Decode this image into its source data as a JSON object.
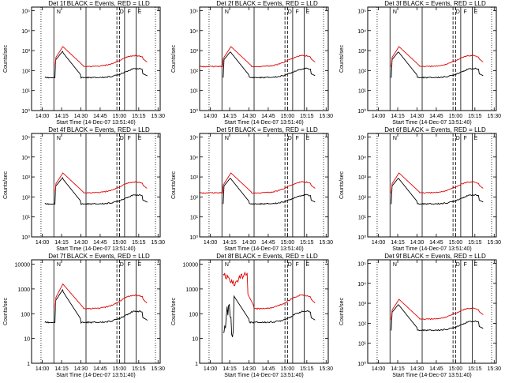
{
  "chart_data": [
    {
      "type": "line",
      "title": "Det 1f BLACK = Events, RED = LLD",
      "xlabel": "Start Time (14-Dec-07 13:51:40)",
      "ylabel": "Counts/sec",
      "ylog": true,
      "ytick_labels": [
        "10⁰",
        "10¹",
        "10²",
        "10³",
        "10⁴",
        "10⁵"
      ],
      "yticks": [
        1,
        10,
        100,
        1000,
        10000,
        100000
      ],
      "ylim": [
        1,
        150000
      ],
      "xticks": [
        "14:00",
        "14:15",
        "14:30",
        "14:45",
        "15:00",
        "15:15",
        "15:30"
      ],
      "xlim": [
        "13:51:40",
        "15:31:40"
      ],
      "markers": {
        "labels": [
          "N",
          "D",
          "F",
          "E"
        ]
      },
      "profile": "a",
      "series": [
        {
          "color": "#000000",
          "start": "14:02"
        },
        {
          "color": "#e00000",
          "start": "14:10"
        }
      ]
    },
    {
      "type": "line",
      "title": "Det 2f BLACK = Events, RED = LLD",
      "xlabel": "Start Time (14-Dec-07 13:51:40)",
      "ylabel": "Counts/sec",
      "ylog": true,
      "ytick_labels": [
        "10⁰",
        "10¹",
        "10²",
        "10³",
        "10⁴",
        "10⁵"
      ],
      "yticks": [
        1,
        10,
        100,
        1000,
        10000,
        100000
      ],
      "ylim": [
        1,
        150000
      ],
      "xticks": [
        "14:00",
        "14:15",
        "14:30",
        "14:45",
        "15:00",
        "15:15",
        "15:30"
      ],
      "xlim": [
        "13:51:40",
        "15:31:40"
      ],
      "markers": {
        "labels": [
          "N",
          "D",
          "F",
          "E"
        ]
      },
      "profile": "b",
      "series": [
        {
          "color": "#000000",
          "start": "14:10"
        },
        {
          "color": "#e00000",
          "start": "13:52"
        }
      ]
    },
    {
      "type": "line",
      "title": "Det 3f BLACK = Events, RED = LLD",
      "xlabel": "Start Time (14-Dec-07 13:51:40)",
      "ylabel": "Counts/sec",
      "ylog": true,
      "ytick_labels": [
        "10⁰",
        "10¹",
        "10²",
        "10³",
        "10⁴",
        "10⁵"
      ],
      "yticks": [
        1,
        10,
        100,
        1000,
        10000,
        100000
      ],
      "ylim": [
        1,
        150000
      ],
      "xticks": [
        "14:00",
        "14:15",
        "14:30",
        "14:45",
        "15:00",
        "15:15",
        "15:30"
      ],
      "xlim": [
        "13:51:40",
        "15:31:40"
      ],
      "markers": {
        "labels": [
          "N",
          "D",
          "F",
          "E"
        ]
      },
      "profile": "c",
      "series": [
        {
          "color": "#000000",
          "start": "14:10"
        },
        {
          "color": "#e00000",
          "start": "14:10"
        }
      ]
    },
    {
      "type": "line",
      "title": "Det 4f BLACK = Events, RED = LLD",
      "xlabel": "Start Time (14-Dec-07 13:51:40)",
      "ylabel": "Counts/sec",
      "ylog": true,
      "ytick_labels": [
        "10⁰",
        "10¹",
        "10²",
        "10³",
        "10⁴",
        "10⁵"
      ],
      "yticks": [
        1,
        10,
        100,
        1000,
        10000,
        100000
      ],
      "ylim": [
        1,
        150000
      ],
      "xticks": [
        "14:00",
        "14:15",
        "14:30",
        "14:45",
        "15:00",
        "15:15",
        "15:30"
      ],
      "xlim": [
        "13:51:40",
        "15:31:40"
      ],
      "markers": {
        "labels": [
          "N",
          "D",
          "F",
          "E"
        ]
      },
      "profile": "a",
      "series": [
        {
          "color": "#000000",
          "start": "14:02"
        },
        {
          "color": "#e00000",
          "start": "14:10"
        }
      ]
    },
    {
      "type": "line",
      "title": "Det 5f BLACK = Events, RED = LLD",
      "xlabel": "Start Time (14-Dec-07 13:51:40)",
      "ylabel": "Counts/sec",
      "ylog": true,
      "ytick_labels": [
        "10⁰",
        "10¹",
        "10²",
        "10³",
        "10⁴",
        "10⁵"
      ],
      "yticks": [
        1,
        10,
        100,
        1000,
        10000,
        100000
      ],
      "ylim": [
        1,
        150000
      ],
      "xticks": [
        "14:00",
        "14:15",
        "14:30",
        "14:45",
        "15:00",
        "15:15",
        "15:30"
      ],
      "xlim": [
        "13:51:40",
        "15:31:40"
      ],
      "markers": {
        "labels": [
          "N",
          "D",
          "F",
          "E"
        ]
      },
      "profile": "b",
      "series": [
        {
          "color": "#000000",
          "start": "14:10"
        },
        {
          "color": "#e00000",
          "start": "13:52"
        }
      ]
    },
    {
      "type": "line",
      "title": "Det 6f BLACK = Events, RED = LLD",
      "xlabel": "Start Time (14-Dec-07 13:51:40)",
      "ylabel": "Counts/sec",
      "ylog": true,
      "ytick_labels": [
        "10⁰",
        "10¹",
        "10²",
        "10³",
        "10⁴",
        "10⁵"
      ],
      "yticks": [
        1,
        10,
        100,
        1000,
        10000,
        100000
      ],
      "ylim": [
        1,
        150000
      ],
      "xticks": [
        "14:00",
        "14:15",
        "14:30",
        "14:45",
        "15:00",
        "15:15",
        "15:30"
      ],
      "xlim": [
        "13:51:40",
        "15:31:40"
      ],
      "markers": {
        "labels": [
          "N",
          "D",
          "F",
          "E"
        ]
      },
      "profile": "c",
      "series": [
        {
          "color": "#000000",
          "start": "14:10"
        },
        {
          "color": "#e00000",
          "start": "14:10"
        }
      ]
    },
    {
      "type": "line",
      "title": "Det 7f BLACK = Events, RED = LLD",
      "xlabel": "Start Time (14-Dec-07 13:51:40)",
      "ylabel": "Counts/sec",
      "ylog": true,
      "ytick_labels": [
        "1",
        "10",
        "100",
        "1000",
        "10000"
      ],
      "yticks": [
        1,
        10,
        100,
        1000,
        10000
      ],
      "ylim": [
        1,
        15000
      ],
      "xticks": [
        "14:00",
        "14:15",
        "14:30",
        "14:45",
        "15:00",
        "15:15",
        "15:30"
      ],
      "xlim": [
        "13:51:40",
        "15:31:40"
      ],
      "markers": {
        "labels": [
          "N",
          "D",
          "F",
          "E"
        ]
      },
      "profile": "a",
      "series": [
        {
          "color": "#000000",
          "start": "14:02"
        },
        {
          "color": "#e00000",
          "start": "14:10"
        }
      ]
    },
    {
      "type": "line",
      "title": "Det 8f BLACK = Events, RED = LLD",
      "xlabel": "Start Time (14-Dec-07 13:51:40)",
      "ylabel": "Counts/sec",
      "ylog": true,
      "ytick_labels": [
        "1",
        "10",
        "100",
        "1000",
        "10000"
      ],
      "yticks": [
        1,
        10,
        100,
        1000,
        10000
      ],
      "ylim": [
        1,
        15000
      ],
      "xticks": [
        "14:00",
        "14:15",
        "14:30",
        "14:45",
        "15:00",
        "15:15",
        "15:30"
      ],
      "xlim": [
        "13:51:40",
        "15:31:40"
      ],
      "markers": {
        "labels": [
          "N",
          "D",
          "F",
          "E"
        ]
      },
      "profile": "d",
      "series": [
        {
          "color": "#000000",
          "start": "14:10"
        },
        {
          "color": "#e00000",
          "start": "14:10"
        }
      ]
    },
    {
      "type": "line",
      "title": "Det 9f BLACK = Events, RED = LLD",
      "xlabel": "Start Time (14-Dec-07 13:51:40)",
      "ylabel": "Counts/sec",
      "ylog": true,
      "ytick_labels": [
        "10⁰",
        "10¹",
        "10²",
        "10³",
        "10⁴",
        "10⁵"
      ],
      "yticks": [
        1,
        10,
        100,
        1000,
        10000,
        100000
      ],
      "ylim": [
        1,
        150000
      ],
      "xticks": [
        "14:00",
        "14:15",
        "14:30",
        "14:45",
        "15:00",
        "15:15",
        "15:30"
      ],
      "xlim": [
        "13:51:40",
        "15:31:40"
      ],
      "markers": {
        "labels": [
          "N",
          "D",
          "F",
          "E"
        ]
      },
      "profile": "c",
      "series": [
        {
          "color": "#000000",
          "start": "14:10"
        },
        {
          "color": "#e00000",
          "start": "14:10"
        }
      ]
    }
  ]
}
